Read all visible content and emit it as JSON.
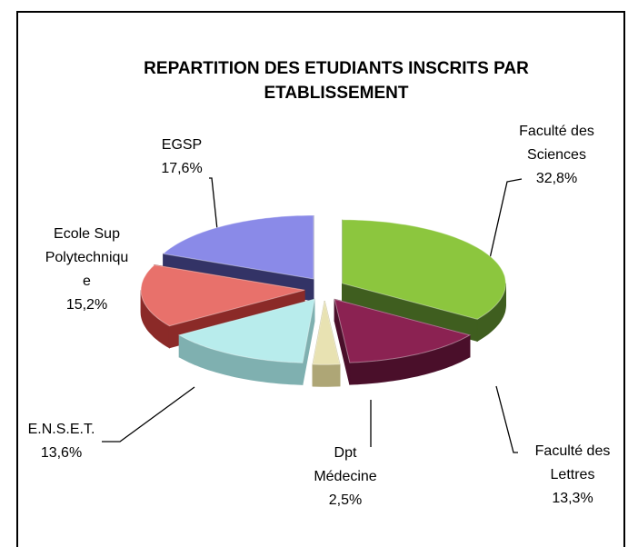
{
  "chart_data": {
    "type": "pie3d",
    "title": "REPARTITION DES ETUDIANTS INSCRITS PAR ETABLISSEMENT",
    "categories": [
      "Faculté des Sciences",
      "Faculté des Lettres",
      "Dpt Médecine",
      "E.N.S.E.T.",
      "Ecole Sup Polytechnique",
      "EGSP"
    ],
    "values": [
      32.8,
      13.3,
      2.5,
      13.6,
      15.2,
      17.6
    ],
    "value_labels": [
      "32,8%",
      "13,3%",
      "2,5%",
      "13,6%",
      "15,2%",
      "17,6%"
    ],
    "colors": [
      "#8cc63e",
      "#8b2252",
      "#e8e2b2",
      "#b8ecec",
      "#e8716b",
      "#8a8ae8"
    ],
    "side_colors": [
      "#3f5e1f",
      "#4a0f2a",
      "#aea676",
      "#7fb0b0",
      "#8b2a28",
      "#333366"
    ]
  }
}
